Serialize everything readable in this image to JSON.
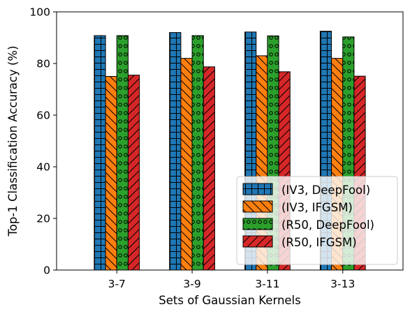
{
  "chart_data": {
    "type": "bar",
    "title": "",
    "xlabel": "Sets of Gaussian Kernels",
    "ylabel": "Top-1 Classification Accuracy (%)",
    "ylim": [
      0,
      100
    ],
    "yticks": [
      0,
      20,
      40,
      60,
      80,
      100
    ],
    "categories": [
      "3-7",
      "3-9",
      "3-11",
      "3-13"
    ],
    "series": [
      {
        "name": "(IV3, DeepFool)",
        "values": [
          90.8,
          92.0,
          92.2,
          92.5
        ],
        "color": "#1f77b4",
        "hatch": "grid"
      },
      {
        "name": "(IV3, IFGSM)",
        "values": [
          75.0,
          82.0,
          83.0,
          82.0
        ],
        "color": "#ff7f0e",
        "hatch": "backslash"
      },
      {
        "name": "(R50, DeepFool)",
        "values": [
          90.8,
          90.8,
          90.7,
          90.3
        ],
        "color": "#2ca02c",
        "hatch": "circles"
      },
      {
        "name": "(R50, IFGSM)",
        "values": [
          75.5,
          78.7,
          76.8,
          75.1
        ],
        "color": "#d62728",
        "hatch": "slash"
      }
    ],
    "legend_position": "lower-right",
    "grid": false
  }
}
